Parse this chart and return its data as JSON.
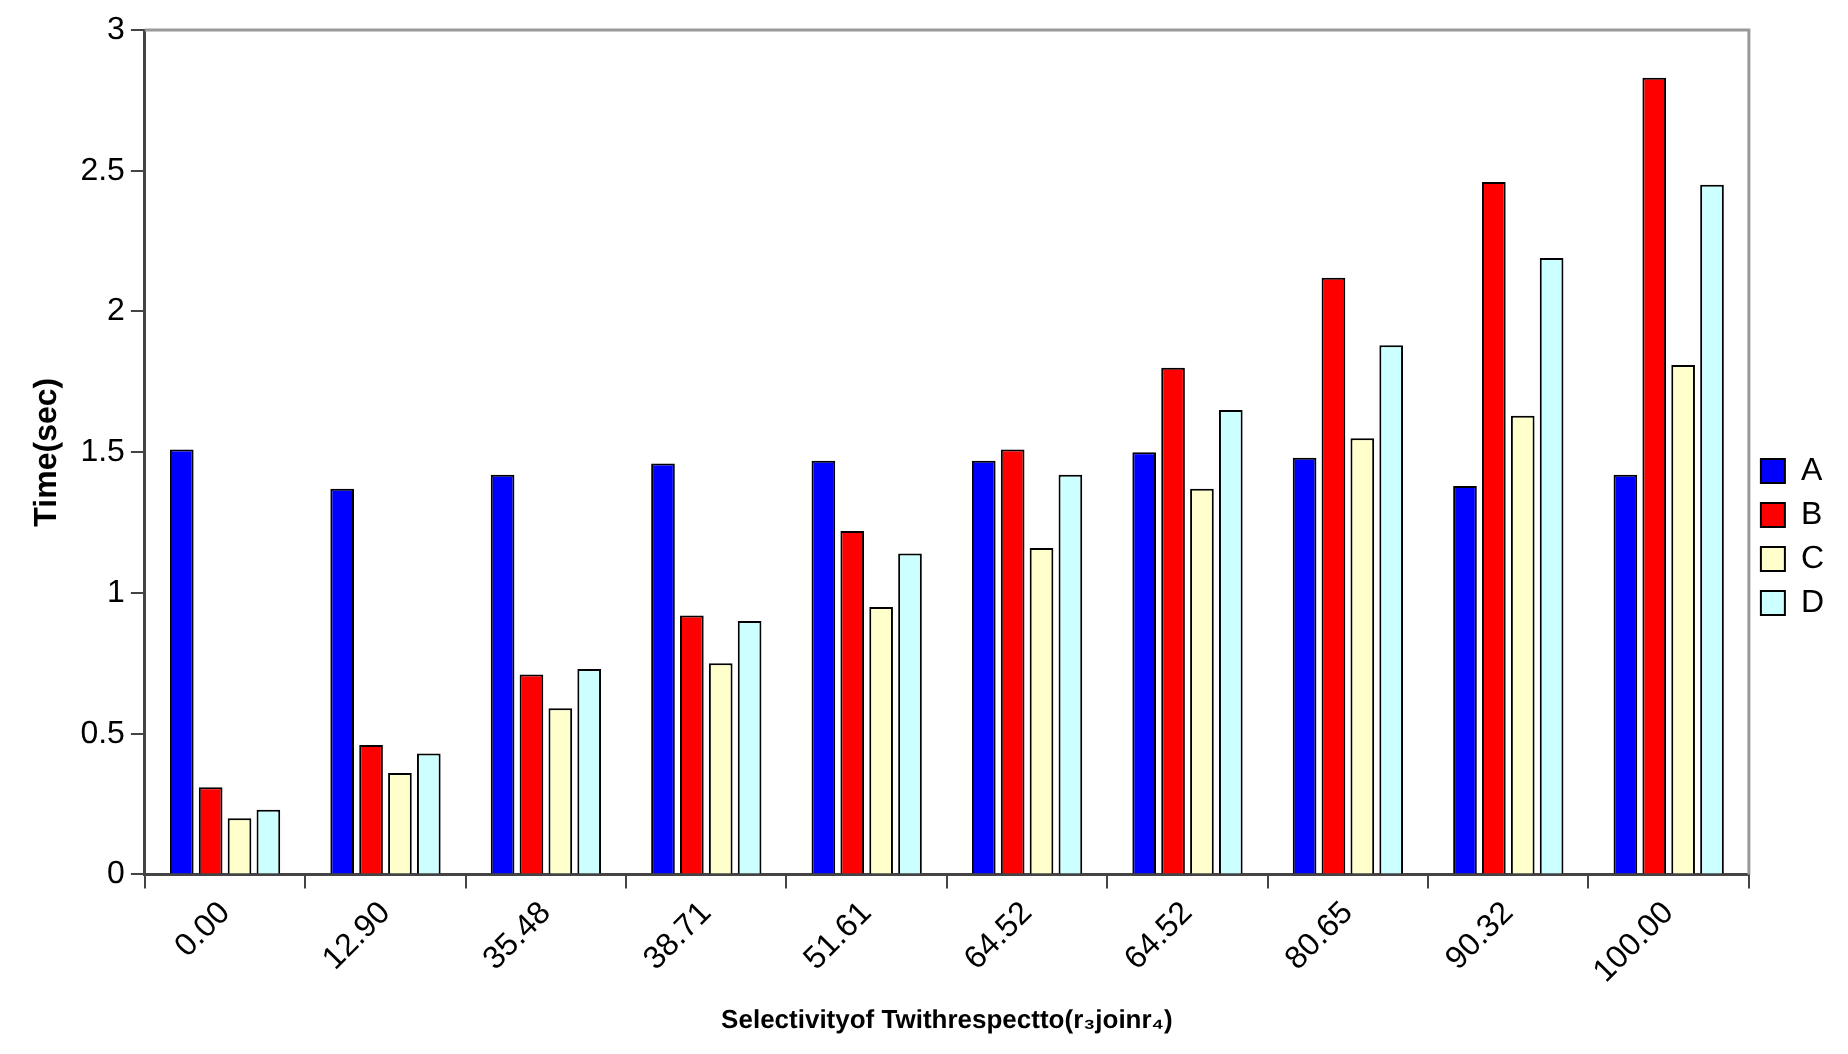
{
  "chart_data": {
    "type": "bar",
    "xlabel": "Selectivityof Twithrespectto(r₃joinr₄)",
    "ylabel": "Time(sec)",
    "categories": [
      "0.00",
      "12.90",
      "35.48",
      "38.71",
      "51.61",
      "64.52",
      "64.52",
      "80.65",
      "90.32",
      "100.00"
    ],
    "series": [
      {
        "name": "A",
        "color": "#0000ff",
        "values": [
          1.51,
          1.37,
          1.42,
          1.46,
          1.47,
          1.47,
          1.5,
          1.48,
          1.38,
          1.42
        ]
      },
      {
        "name": "B",
        "color": "#ff0000",
        "values": [
          0.31,
          0.46,
          0.71,
          0.92,
          1.22,
          1.51,
          1.8,
          2.12,
          2.46,
          2.83
        ]
      },
      {
        "name": "C",
        "color": "#ffffcc",
        "values": [
          0.2,
          0.36,
          0.59,
          0.75,
          0.95,
          1.16,
          1.37,
          1.55,
          1.63,
          1.81
        ]
      },
      {
        "name": "D",
        "color": "#ccffff",
        "values": [
          0.23,
          0.43,
          0.73,
          0.9,
          1.14,
          1.42,
          1.65,
          1.88,
          2.19,
          2.45
        ]
      }
    ],
    "ylim": [
      0,
      3
    ],
    "yticks": [
      0,
      0.5,
      1,
      1.5,
      2,
      2.5,
      3
    ],
    "grid": false,
    "legend": "right"
  }
}
